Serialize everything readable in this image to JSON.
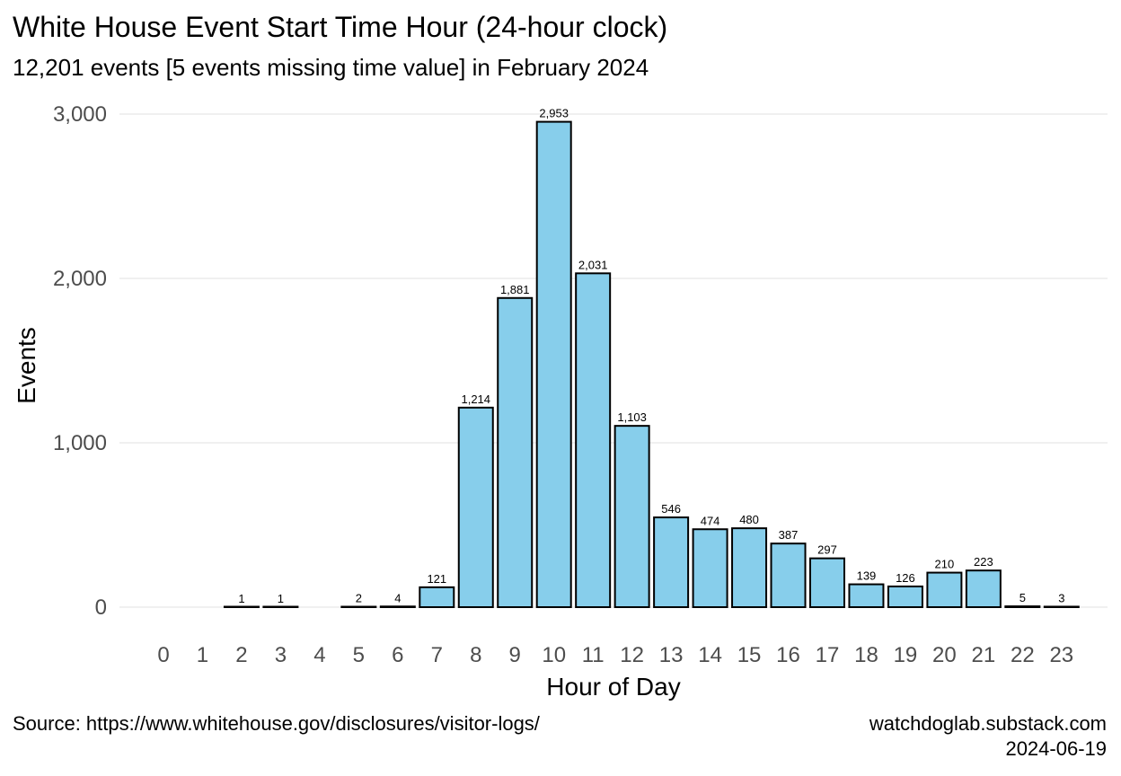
{
  "chart_data": {
    "type": "bar",
    "title": "White House Event Start Time Hour (24-hour clock)",
    "subtitle": "12,201 events [5 events missing time value] in February 2024",
    "xlabel": "Hour of Day",
    "ylabel": "Events",
    "categories": [
      "0",
      "1",
      "2",
      "3",
      "4",
      "5",
      "6",
      "7",
      "8",
      "9",
      "10",
      "11",
      "12",
      "13",
      "14",
      "15",
      "16",
      "17",
      "18",
      "19",
      "20",
      "21",
      "22",
      "23"
    ],
    "values": [
      0,
      0,
      1,
      1,
      0,
      2,
      4,
      121,
      1214,
      1881,
      2953,
      2031,
      1103,
      546,
      474,
      480,
      387,
      297,
      139,
      126,
      210,
      223,
      5,
      3
    ],
    "data_labels": [
      "",
      "",
      "1",
      "1",
      "",
      "2",
      "4",
      "121",
      "1,214",
      "1,881",
      "2,953",
      "2,031",
      "1,103",
      "546",
      "474",
      "480",
      "387",
      "297",
      "139",
      "126",
      "210",
      "223",
      "5",
      "3"
    ],
    "y_ticks": [
      0,
      1000,
      2000,
      3000
    ],
    "y_tick_labels": [
      "0",
      "1,000",
      "2,000",
      "3,000"
    ],
    "ylim": [
      0,
      3000
    ],
    "grid": "horizontal",
    "legend": "none",
    "bar_color": "#87CEEB",
    "bar_outline": "#000000",
    "source": "Source: https://www.whitehouse.gov/disclosures/visitor-logs/",
    "caption": [
      "watchdoglab.substack.com",
      "2024-06-19"
    ]
  }
}
